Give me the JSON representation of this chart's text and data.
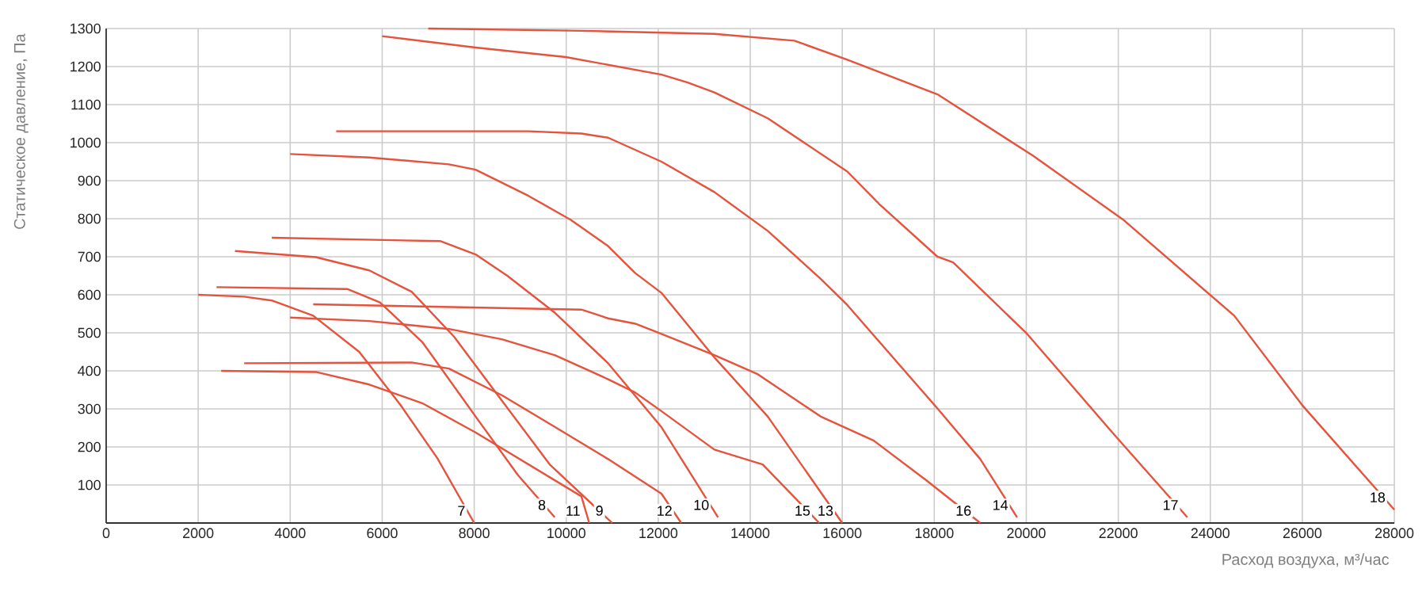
{
  "chart_data": {
    "type": "line",
    "xlabel": "Расход воздуха, м³/час",
    "ylabel": "Статическое давление, Па",
    "xlim": [
      0,
      28000
    ],
    "ylim": [
      0,
      1300
    ],
    "xticks": [
      0,
      2000,
      4000,
      6000,
      8000,
      10000,
      12000,
      14000,
      16000,
      18000,
      20000,
      22000,
      24000,
      26000,
      28000
    ],
    "yticks": [
      {
        "value": 0,
        "label": null
      },
      100,
      200,
      300,
      400,
      500,
      600,
      700,
      800,
      900,
      1000,
      1100,
      1200,
      1300
    ],
    "grid": true,
    "legend": false,
    "marker": "none",
    "line_style": "solid",
    "series": [
      {
        "name": "7",
        "color": "#e5533d",
        "x": [
          2000,
          3000,
          3600,
          4500,
          5500,
          6400,
          7200,
          8000
        ],
        "values": [
          600,
          595,
          585,
          545,
          450,
          310,
          170,
          0
        ]
      },
      {
        "name": "8",
        "color": "#e5533d",
        "x": [
          2400,
          5250,
          5950,
          6870,
          8030,
          8950,
          9750
        ],
        "values": [
          620,
          615,
          580,
          476,
          280,
          126,
          15
        ]
      },
      {
        "name": "9",
        "color": "#e5533d",
        "x": [
          2800,
          4560,
          5720,
          6640,
          7560,
          8600,
          9640,
          11000
        ],
        "values": [
          715,
          699,
          664,
          608,
          490,
          322,
          154,
          0
        ]
      },
      {
        "name": "10",
        "color": "#e5533d",
        "x": [
          3600,
          7270,
          8030,
          8720,
          9760,
          10910,
          12070,
          13300
        ],
        "values": [
          750,
          741,
          706,
          650,
          552,
          420,
          252,
          15
        ]
      },
      {
        "name": "11",
        "color": "#e5533d",
        "x": [
          2500,
          4560,
          5720,
          6870,
          8030,
          9180,
          10330,
          10500
        ],
        "values": [
          400,
          397,
          364,
          315,
          238,
          154,
          70,
          0
        ]
      },
      {
        "name": "12",
        "color": "#e5533d",
        "x": [
          3000,
          6640,
          7450,
          8600,
          9760,
          10910,
          12070,
          12500
        ],
        "values": [
          420,
          422,
          406,
          336,
          252,
          168,
          77,
          0
        ]
      },
      {
        "name": "13",
        "color": "#e5533d",
        "x": [
          4000,
          5720,
          7450,
          8030,
          9180,
          10100,
          10910,
          11500,
          12070,
          13230,
          14380,
          16000
        ],
        "values": [
          970,
          961,
          943,
          929,
          860,
          797,
          728,
          657,
          605,
          434,
          280,
          0
        ]
      },
      {
        "name": "14",
        "color": "#e5533d",
        "x": [
          5000,
          9180,
          10330,
          10910,
          12070,
          13220,
          14380,
          15530,
          16110,
          18070,
          19000,
          19800
        ],
        "values": [
          1030,
          1030,
          1024,
          1013,
          950,
          870,
          768,
          642,
          573,
          301,
          168,
          15
        ]
      },
      {
        "name": "15",
        "color": "#e5533d",
        "x": [
          4000,
          5720,
          7450,
          8600,
          9760,
          10910,
          11500,
          12070,
          13220,
          14270,
          15500
        ],
        "values": [
          540,
          531,
          510,
          483,
          441,
          378,
          343,
          294,
          193,
          154,
          0
        ]
      },
      {
        "name": "16",
        "color": "#e5533d",
        "x": [
          4500,
          10330,
          10910,
          11500,
          12070,
          13230,
          14150,
          15530,
          16680,
          17830,
          19000
        ],
        "values": [
          575,
          561,
          538,
          524,
          497,
          441,
          392,
          280,
          217,
          112,
          0
        ]
      },
      {
        "name": "17",
        "color": "#e5533d",
        "x": [
          6000,
          8030,
          9990,
          12070,
          12640,
          13220,
          14380,
          16110,
          16800,
          18070,
          18410,
          20020,
          21870,
          23500
        ],
        "values": [
          1280,
          1250,
          1225,
          1179,
          1158,
          1132,
          1064,
          924,
          839,
          700,
          685,
          497,
          238,
          15
        ]
      },
      {
        "name": "18",
        "color": "#e5533d",
        "x": [
          7000,
          10330,
          13220,
          14960,
          16110,
          18070,
          20140,
          22100,
          24520,
          26010,
          28000
        ],
        "values": [
          1300,
          1294,
          1286,
          1268,
          1218,
          1127,
          966,
          798,
          545,
          308,
          35
        ]
      }
    ]
  }
}
